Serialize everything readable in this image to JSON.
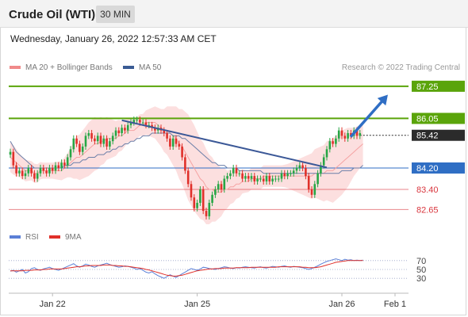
{
  "header": {
    "title": "Crude Oil (WTI)",
    "timeframe": "30 MIN"
  },
  "datetime": "Wednesday, January 26, 2022 12:57:33 AM CET",
  "legend": [
    {
      "label": "MA 20 + Bollinger Bands",
      "color": "#f08a8a"
    },
    {
      "label": "MA 50",
      "color": "#3a5b94"
    }
  ],
  "credit": "Research © 2022 Trading Central",
  "rsi_legend": [
    {
      "label": "RSI",
      "color": "#5b7fd6"
    },
    {
      "label": "9MA",
      "color": "#e0302a"
    }
  ],
  "colors": {
    "up_candle": "#27a645",
    "down_candle": "#e0302a",
    "resistance": "#5aa40a",
    "support": "#d9363e",
    "current": "#2b2b2b",
    "pivot": "#2f6ec4",
    "trendline": "#3b5897",
    "bollinger_fill": "#fbd9d9",
    "ma20": "#f5a3a3",
    "ma50": "#6b7fa8",
    "rsi": "#5b7fd6",
    "rsi_ma": "#e0302a"
  },
  "chart_data": {
    "type": "candlestick",
    "price_range": [
      82.1,
      87.6
    ],
    "levels": [
      {
        "value": 87.25,
        "label": "87.25",
        "kind": "resistance"
      },
      {
        "value": 86.05,
        "label": "86.05",
        "kind": "resistance"
      },
      {
        "value": 85.42,
        "label": "85.42",
        "kind": "current"
      },
      {
        "value": 84.2,
        "label": "84.20",
        "kind": "pivot"
      },
      {
        "value": 83.4,
        "label": "83.40",
        "kind": "support"
      },
      {
        "value": 82.65,
        "label": "82.65",
        "kind": "support"
      }
    ],
    "closes": [
      84.8,
      84.3,
      84.0,
      84.1,
      83.9,
      84.0,
      84.2,
      84.0,
      83.8,
      84.0,
      84.2,
      84.1,
      84.0,
      84.2,
      84.1,
      84.3,
      84.2,
      84.4,
      84.3,
      84.6,
      84.9,
      85.3,
      85.1,
      84.8,
      85.0,
      85.4,
      85.5,
      85.3,
      85.2,
      85.4,
      85.1,
      85.3,
      85.0,
      85.2,
      85.4,
      85.6,
      85.5,
      85.7,
      85.6,
      85.8,
      85.9,
      86.0,
      86.0,
      85.9,
      85.9,
      85.8,
      85.8,
      85.7,
      85.6,
      85.7,
      85.6,
      85.5,
      85.3,
      85.0,
      85.3,
      85.1,
      85.0,
      84.6,
      84.1,
      83.6,
      83.1,
      82.7,
      82.9,
      83.4,
      82.6,
      82.4,
      82.9,
      83.2,
      83.4,
      83.6,
      83.4,
      83.8,
      83.9,
      84.0,
      84.2,
      84.0,
      84.0,
      83.8,
      83.9,
      83.8,
      83.9,
      83.7,
      83.8,
      83.8,
      83.7,
      83.9,
      83.7,
      83.8,
      83.8,
      83.8,
      84.0,
      83.9,
      84.0,
      84.0,
      84.1,
      84.2,
      84.3,
      84.2,
      83.9,
      83.4,
      83.2,
      83.6,
      84.0,
      84.3,
      84.6,
      84.9,
      85.2,
      85.1,
      85.3,
      85.6,
      85.4,
      85.3,
      85.5,
      85.4,
      85.6,
      85.4,
      85.5
    ],
    "ma20": [
      84.6,
      84.5,
      84.4,
      84.3,
      84.2,
      84.1,
      84.1,
      84.1,
      84.0,
      84.0,
      84.1,
      84.1,
      84.1,
      84.1,
      84.1,
      84.1,
      84.1,
      84.1,
      84.2,
      84.3,
      84.4,
      84.5,
      84.6,
      84.6,
      84.7,
      84.8,
      84.9,
      85.0,
      85.1,
      85.1,
      85.2,
      85.2,
      85.3,
      85.3,
      85.3,
      85.3,
      85.4,
      85.4,
      85.5,
      85.6,
      85.6,
      85.6,
      85.7,
      85.8,
      85.8,
      85.9,
      85.9,
      85.9,
      85.9,
      85.8,
      85.7,
      85.6,
      85.6,
      85.5,
      85.4,
      85.3,
      85.1,
      85.0,
      84.8,
      84.6,
      84.4,
      84.2,
      84.0,
      83.8,
      83.7,
      83.5,
      83.4,
      83.4,
      83.3,
      83.3,
      83.3,
      83.4,
      83.4,
      83.5,
      83.5,
      83.6,
      83.6,
      83.7,
      83.7,
      83.7,
      83.8,
      83.8,
      83.8,
      83.8,
      83.9,
      83.9,
      83.9,
      83.9,
      83.9,
      83.9,
      83.9,
      83.9,
      83.9,
      83.9,
      83.9,
      83.9,
      83.9,
      83.9,
      83.9,
      83.9,
      83.9,
      84.0,
      84.0,
      84.0,
      84.0,
      84.1,
      84.1,
      84.1,
      84.2,
      84.3,
      84.4,
      84.5,
      84.6,
      84.7,
      84.8,
      84.9,
      85.0,
      85.1
    ],
    "ma50": [
      85.2,
      85.0,
      84.8,
      84.7,
      84.6,
      84.5,
      84.4,
      84.3,
      84.2,
      84.2,
      84.2,
      84.2,
      84.2,
      84.2,
      84.2,
      84.2,
      84.2,
      84.2,
      84.3,
      84.3,
      84.3,
      84.4,
      84.4,
      84.4,
      84.5,
      84.5,
      84.6,
      84.6,
      84.6,
      84.7,
      84.7,
      84.7,
      84.8,
      84.8,
      84.9,
      84.9,
      85.0,
      85.0,
      85.1,
      85.1,
      85.2,
      85.2,
      85.3,
      85.3,
      85.4,
      85.4,
      85.4,
      85.5,
      85.5,
      85.5,
      85.5,
      85.5,
      85.5,
      85.5,
      85.4,
      85.4,
      85.4,
      85.3,
      85.3,
      85.2,
      85.1,
      85.0,
      84.9,
      84.8,
      84.7,
      84.6,
      84.5,
      84.4,
      84.4,
      84.3,
      84.3,
      84.3,
      84.2,
      84.2,
      84.2,
      84.2,
      84.1,
      84.1,
      84.1,
      84.1,
      84.1,
      84.1,
      84.1,
      84.1,
      84.0,
      84.0,
      84.0,
      84.0,
      84.0,
      84.0,
      84.0,
      84.0,
      84.0,
      84.0,
      84.0,
      84.0,
      84.0,
      84.0,
      84.0,
      84.0,
      84.0,
      84.0,
      84.0,
      84.0,
      84.0,
      84.0,
      84.0,
      84.0,
      84.0,
      84.0,
      84.1,
      84.1,
      84.1,
      84.1,
      84.2,
      84.2,
      84.2,
      84.3
    ],
    "bb_width": [
      0.55,
      0.55,
      0.5,
      0.45,
      0.4,
      0.4,
      0.38,
      0.36,
      0.36,
      0.34,
      0.32,
      0.3,
      0.3,
      0.3,
      0.3,
      0.32,
      0.34,
      0.36,
      0.4,
      0.45,
      0.55,
      0.7,
      0.8,
      0.85,
      0.9,
      0.95,
      1.0,
      1.0,
      1.0,
      0.95,
      0.9,
      0.85,
      0.8,
      0.75,
      0.7,
      0.65,
      0.6,
      0.55,
      0.5,
      0.45,
      0.42,
      0.4,
      0.4,
      0.4,
      0.42,
      0.45,
      0.5,
      0.55,
      0.6,
      0.65,
      0.7,
      0.8,
      0.9,
      1.0,
      1.1,
      1.2,
      1.3,
      1.4,
      1.5,
      1.6,
      1.6,
      1.6,
      1.55,
      1.5,
      1.45,
      1.4,
      1.3,
      1.2,
      1.1,
      1.0,
      0.9,
      0.8,
      0.7,
      0.65,
      0.6,
      0.55,
      0.5,
      0.45,
      0.42,
      0.4,
      0.4,
      0.4,
      0.4,
      0.4,
      0.4,
      0.4,
      0.4,
      0.4,
      0.4,
      0.4,
      0.4,
      0.42,
      0.45,
      0.5,
      0.55,
      0.6,
      0.65,
      0.7,
      0.75,
      0.8,
      0.85,
      0.9,
      0.95,
      1.0,
      1.05,
      1.1,
      1.15,
      1.2,
      1.2,
      1.2,
      1.2,
      1.15,
      1.1,
      1.0,
      0.9,
      0.85,
      0.8,
      0.8
    ],
    "trendline": [
      [
        37,
        85.98
      ],
      [
        105,
        84.22
      ]
    ],
    "projection": [
      [
        115,
        85.42
      ],
      [
        125,
        86.8
      ]
    ],
    "rsi_levels": [
      70,
      50,
      30
    ],
    "rsi": [
      46,
      48,
      44,
      47,
      50,
      42,
      45,
      52,
      54,
      50,
      48,
      51,
      53,
      55,
      52,
      50,
      48,
      51,
      54,
      57,
      60,
      63,
      58,
      55,
      58,
      62,
      60,
      57,
      55,
      58,
      60,
      62,
      64,
      61,
      59,
      57,
      55,
      56,
      58,
      57,
      55,
      53,
      50,
      52,
      48,
      44,
      42,
      45,
      40,
      36,
      33,
      30,
      34,
      38,
      35,
      32,
      36,
      40,
      44,
      48,
      52,
      50,
      48,
      51,
      55,
      54,
      52,
      51,
      50,
      52,
      54,
      56,
      55,
      53,
      52,
      54,
      53,
      55,
      56,
      55,
      54,
      53,
      55,
      56,
      54,
      53,
      55,
      57,
      56,
      55,
      57,
      58,
      56,
      55,
      57,
      56,
      55,
      54,
      52,
      50,
      52,
      55,
      58,
      62,
      65,
      68,
      70,
      72,
      74,
      72,
      70,
      73,
      71,
      72,
      70,
      71,
      70,
      71
    ],
    "rsi_ma": [
      47,
      47,
      47,
      47,
      47,
      48,
      48,
      48,
      49,
      49,
      49,
      50,
      50,
      51,
      51,
      51,
      51,
      51,
      52,
      53,
      54,
      55,
      56,
      56,
      57,
      58,
      58,
      59,
      59,
      59,
      59,
      60,
      60,
      60,
      59,
      59,
      58,
      58,
      57,
      57,
      56,
      55,
      54,
      53,
      52,
      50,
      49,
      47,
      45,
      43,
      41,
      39,
      37,
      36,
      35,
      35,
      36,
      37,
      39,
      41,
      43,
      45,
      47,
      48,
      49,
      50,
      51,
      51,
      52,
      52,
      52,
      53,
      53,
      53,
      53,
      54,
      54,
      54,
      54,
      54,
      55,
      55,
      55,
      55,
      55,
      55,
      55,
      55,
      55,
      56,
      56,
      56,
      56,
      56,
      56,
      56,
      56,
      55,
      55,
      54,
      54,
      54,
      55,
      56,
      58,
      60,
      62,
      64,
      66,
      67,
      68,
      69,
      70,
      70,
      70,
      70,
      70,
      70
    ],
    "x_ticks": [
      {
        "index": 14,
        "label": "Jan 22"
      },
      {
        "index": 62,
        "label": "Jan 25"
      },
      {
        "index": 110,
        "label": "Jan 26"
      },
      {
        "index": 130,
        "label": "Feb 1"
      }
    ]
  }
}
